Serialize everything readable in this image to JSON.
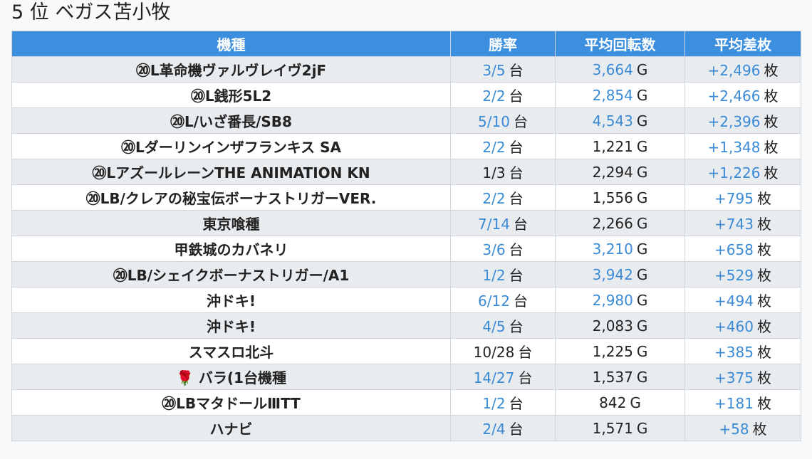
{
  "header": {
    "title": "5 位 ベガス苫小牧"
  },
  "table": {
    "columns": [
      "機種",
      "勝率",
      "平均回転数",
      "平均差枚"
    ],
    "units": {
      "win": "台",
      "rotation": "G",
      "diff": "枚"
    },
    "rows": [
      {
        "model": "⑳L革命機ヴァルヴレイヴ2jF",
        "win": "3/5",
        "win_color": "blue",
        "rotation": "3,664",
        "rot_color": "blue",
        "diff": "+2,496"
      },
      {
        "model": "⑳L銭形5L2",
        "win": "2/2",
        "win_color": "blue",
        "rotation": "2,854",
        "rot_color": "blue",
        "diff": "+2,466"
      },
      {
        "model": "⑳L/いざ番長/SB8",
        "win": "5/10",
        "win_color": "blue",
        "rotation": "4,543",
        "rot_color": "blue",
        "diff": "+2,396"
      },
      {
        "model": "⑳Lダーリンインザフランキス SA",
        "win": "2/2",
        "win_color": "blue",
        "rotation": "1,221",
        "rot_color": "dark",
        "diff": "+1,348"
      },
      {
        "model": "⑳LアズールレーンTHE ANIMATION KN",
        "win": "1/3",
        "win_color": "dark",
        "rotation": "2,294",
        "rot_color": "dark",
        "diff": "+1,226"
      },
      {
        "model": "⑳LB/クレアの秘宝伝ボーナストリガーVER.",
        "win": "2/2",
        "win_color": "blue",
        "rotation": "1,556",
        "rot_color": "dark",
        "diff": "+795"
      },
      {
        "model": "東京喰種",
        "win": "7/14",
        "win_color": "blue",
        "rotation": "2,266",
        "rot_color": "dark",
        "diff": "+743"
      },
      {
        "model": "甲鉄城のカバネリ",
        "win": "3/6",
        "win_color": "blue",
        "rotation": "3,210",
        "rot_color": "blue",
        "diff": "+658"
      },
      {
        "model": "⑳LB/シェイクボーナストリガー/A1",
        "win": "1/2",
        "win_color": "blue",
        "rotation": "3,942",
        "rot_color": "blue",
        "diff": "+529"
      },
      {
        "model": "沖ドキ!",
        "win": "6/12",
        "win_color": "blue",
        "rotation": "2,980",
        "rot_color": "blue",
        "diff": "+494"
      },
      {
        "model": "沖ドキ!",
        "win": "4/5",
        "win_color": "blue",
        "rotation": "2,083",
        "rot_color": "dark",
        "diff": "+460"
      },
      {
        "model": "スマスロ北斗",
        "win": "10/28",
        "win_color": "dark",
        "rotation": "1,225",
        "rot_color": "dark",
        "diff": "+385"
      },
      {
        "model": "🌹 バラ(1台機種",
        "win": "14/27",
        "win_color": "blue",
        "rotation": "1,537",
        "rot_color": "dark",
        "diff": "+375"
      },
      {
        "model": "⑳LBマタドールⅢTT",
        "win": "1/2",
        "win_color": "blue",
        "rotation": "842",
        "rot_color": "dark",
        "diff": "+181"
      },
      {
        "model": "ハナビ",
        "win": "2/4",
        "win_color": "blue",
        "rotation": "1,571",
        "rot_color": "dark",
        "diff": "+58"
      }
    ]
  },
  "colors": {
    "header_bg": "#3c8fde",
    "accent_blue": "#3a8ad6",
    "row_stripe": "#e9ecef"
  }
}
